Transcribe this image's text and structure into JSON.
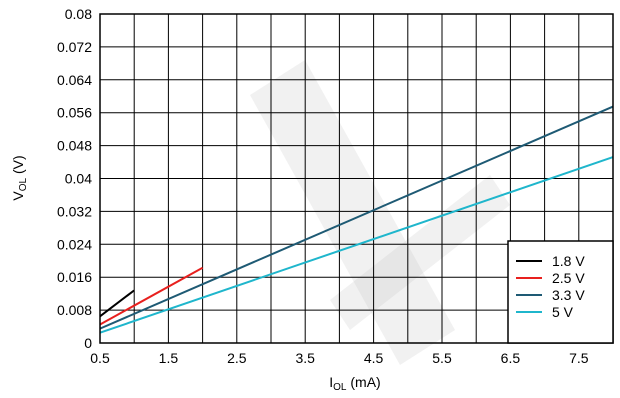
{
  "chart_data": {
    "type": "line",
    "title": "",
    "xlabel": {
      "main": "I",
      "sub": "OL",
      "unit": " (mA)"
    },
    "ylabel": {
      "main": "V",
      "sub": "OL",
      "unit": " (V)"
    },
    "xlim": [
      0.5,
      8
    ],
    "ylim": [
      0,
      0.08
    ],
    "x_ticks": [
      0.5,
      1.5,
      2.5,
      3.5,
      4.5,
      5.5,
      6.5,
      7.5
    ],
    "x_tick_labels": [
      "0.5",
      "1.5",
      "2.5",
      "3.5",
      "4.5",
      "5.5",
      "6.5",
      "7.5"
    ],
    "x_grid_step": 0.5,
    "y_ticks": [
      0,
      0.008,
      0.016,
      0.024,
      0.032,
      0.04,
      0.048,
      0.056,
      0.064,
      0.072,
      0.08
    ],
    "y_tick_labels": [
      "0",
      "0.008",
      "0.016",
      "0.024",
      "0.032",
      "0.04",
      "0.048",
      "0.056",
      "0.064",
      "0.072",
      "0.08"
    ],
    "grid": true,
    "legend_position": "bottom-right",
    "series": [
      {
        "name": "1.8 V",
        "color": "#000000",
        "x": [
          0.5,
          1.0
        ],
        "y": [
          0.0065,
          0.0128
        ]
      },
      {
        "name": "2.5 V",
        "color": "#e8201e",
        "x": [
          0.5,
          2.0
        ],
        "y": [
          0.0045,
          0.0183
        ]
      },
      {
        "name": "3.3 V",
        "color": "#1e5a74",
        "x": [
          0.5,
          8.0
        ],
        "y": [
          0.0035,
          0.0575
        ]
      },
      {
        "name": "5 V",
        "color": "#1fb6cc",
        "x": [
          0.5,
          8.0
        ],
        "y": [
          0.0025,
          0.0452
        ]
      }
    ]
  }
}
